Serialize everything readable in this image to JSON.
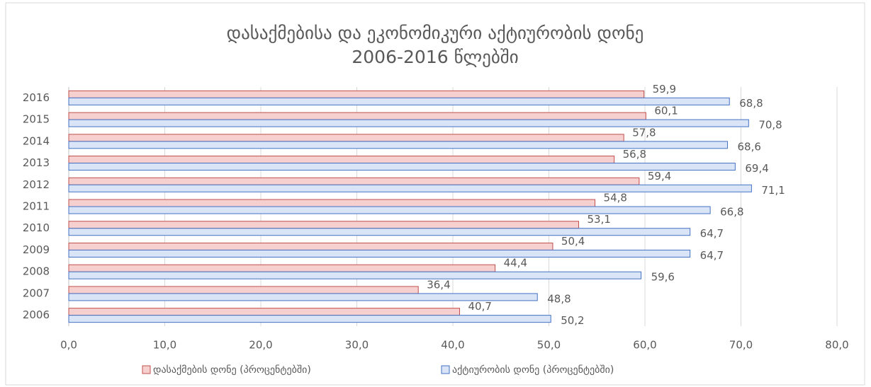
{
  "chart_data": {
    "type": "bar",
    "orientation": "horizontal",
    "title": [
      "დასაქმებისა  და ეკონომიკური  აქტიურობის დონე",
      "2006-2016 წლებში"
    ],
    "categories": [
      "2016",
      "2015",
      "2014",
      "2013",
      "2012",
      "2011",
      "2010",
      "2009",
      "2008",
      "2007",
      "2006"
    ],
    "series": [
      {
        "name": "დასაქმების დონე (პროცენტებში)",
        "color": "#f6cfcf",
        "stroke": "#c0504d",
        "values": [
          59.9,
          60.1,
          57.8,
          56.8,
          59.4,
          54.8,
          53.1,
          50.4,
          44.4,
          36.4,
          40.7
        ],
        "value_labels": [
          "59,9",
          "60,1",
          "57,8",
          "56,8",
          "59,4",
          "54,8",
          "53,1",
          "50,4",
          "44,4",
          "36,4",
          "40,7"
        ]
      },
      {
        "name": "აქტიურობის დონე (პროცენტებში)",
        "color": "#d9e4f6",
        "stroke": "#4472c4",
        "values": [
          68.8,
          70.8,
          68.6,
          69.4,
          71.1,
          66.8,
          64.7,
          64.7,
          59.6,
          48.8,
          50.2
        ],
        "value_labels": [
          "68,8",
          "70,8",
          "68,6",
          "69,4",
          "71,1",
          "66,8",
          "64,7",
          "64,7",
          "59,6",
          "48,8",
          "50,2"
        ]
      }
    ],
    "xlim": [
      0,
      80
    ],
    "xticks": [
      {
        "value": 0,
        "label": "0,0"
      },
      {
        "value": 10,
        "label": "10,0"
      },
      {
        "value": 20,
        "label": "20,0"
      },
      {
        "value": 30,
        "label": "30,0"
      },
      {
        "value": 40,
        "label": "40,0"
      },
      {
        "value": 50,
        "label": "50,0"
      },
      {
        "value": 60,
        "label": "60,0"
      },
      {
        "value": 70,
        "label": "70,0"
      },
      {
        "value": 80,
        "label": "80,0"
      }
    ],
    "grid": true,
    "legend": "bottom"
  }
}
